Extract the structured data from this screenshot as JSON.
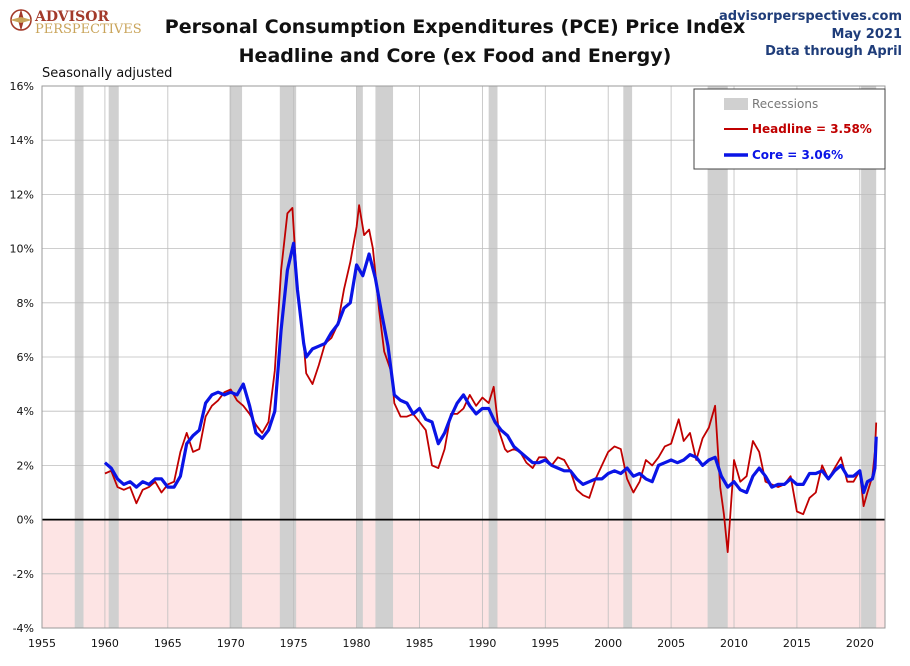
{
  "header": {
    "brand_top": "ADVISOR",
    "brand_bottom": "PERSPECTIVES",
    "title_line1": "Personal Consumption Expenditures (PCE) Price Index",
    "title_line2": "Headline and Core (ex Food and Energy)",
    "site": "advisorperspectives.com",
    "date": "May 2021",
    "data_through": "Data through April",
    "seasonal_note": "Seasonally adjusted"
  },
  "colors": {
    "headline": "#c00000",
    "core": "#0a14e6",
    "recession": "#d0d0d0",
    "negative_zone": "#fde4e4",
    "grid": "#bdbdbd"
  },
  "chart_data": {
    "type": "line",
    "title": "Personal Consumption Expenditures (PCE) Price Index Headline and Core (ex Food and Energy)",
    "xlim": [
      1955,
      2022
    ],
    "ylim": [
      -4,
      16
    ],
    "x_ticks": [
      1955,
      1960,
      1965,
      1970,
      1975,
      1980,
      1985,
      1990,
      1995,
      2000,
      2005,
      2010,
      2015,
      2020
    ],
    "y_ticks": [
      -4,
      -2,
      0,
      2,
      4,
      6,
      8,
      10,
      12,
      14,
      16
    ],
    "y_tick_suffix": "%",
    "grid": true,
    "legend": {
      "placement": "top-right",
      "recessions_label": "Recessions",
      "headline_label": "Headline = 3.58%",
      "core_label": "Core = 3.06%"
    },
    "recessions": [
      [
        1957.6,
        1958.3
      ],
      [
        1960.3,
        1961.1
      ],
      [
        1969.9,
        1970.9
      ],
      [
        1973.9,
        1975.2
      ],
      [
        1980.0,
        1980.5
      ],
      [
        1981.5,
        1982.9
      ],
      [
        1990.5,
        1991.2
      ],
      [
        2001.2,
        2001.9
      ],
      [
        2007.9,
        2009.5
      ],
      [
        2020.1,
        2021.3
      ]
    ],
    "series": [
      {
        "name": "Headline",
        "points": [
          [
            1960,
            1.7
          ],
          [
            1960.5,
            1.8
          ],
          [
            1961,
            1.2
          ],
          [
            1961.5,
            1.1
          ],
          [
            1962,
            1.2
          ],
          [
            1962.5,
            0.6
          ],
          [
            1963,
            1.1
          ],
          [
            1963.5,
            1.2
          ],
          [
            1964,
            1.4
          ],
          [
            1964.5,
            1.0
          ],
          [
            1965,
            1.3
          ],
          [
            1965.5,
            1.4
          ],
          [
            1966,
            2.5
          ],
          [
            1966.5,
            3.2
          ],
          [
            1967,
            2.5
          ],
          [
            1967.5,
            2.6
          ],
          [
            1968,
            3.8
          ],
          [
            1968.5,
            4.2
          ],
          [
            1969,
            4.4
          ],
          [
            1969.5,
            4.7
          ],
          [
            1970,
            4.8
          ],
          [
            1970.5,
            4.4
          ],
          [
            1971,
            4.2
          ],
          [
            1971.5,
            3.9
          ],
          [
            1972,
            3.5
          ],
          [
            1972.5,
            3.2
          ],
          [
            1973,
            3.6
          ],
          [
            1973.5,
            5.5
          ],
          [
            1974,
            9.2
          ],
          [
            1974.5,
            11.3
          ],
          [
            1974.9,
            11.5
          ],
          [
            1975.3,
            8.5
          ],
          [
            1975.8,
            6.5
          ],
          [
            1976,
            5.4
          ],
          [
            1976.5,
            5.0
          ],
          [
            1977,
            5.7
          ],
          [
            1977.5,
            6.5
          ],
          [
            1978,
            6.7
          ],
          [
            1978.5,
            7.2
          ],
          [
            1979,
            8.5
          ],
          [
            1979.5,
            9.5
          ],
          [
            1980,
            10.8
          ],
          [
            1980.2,
            11.6
          ],
          [
            1980.6,
            10.5
          ],
          [
            1981,
            10.7
          ],
          [
            1981.3,
            10.0
          ],
          [
            1981.8,
            7.7
          ],
          [
            1982.2,
            6.2
          ],
          [
            1982.8,
            5.4
          ],
          [
            1983,
            4.3
          ],
          [
            1983.5,
            3.8
          ],
          [
            1984,
            3.8
          ],
          [
            1984.5,
            3.9
          ],
          [
            1985,
            3.6
          ],
          [
            1985.5,
            3.3
          ],
          [
            1986,
            2.0
          ],
          [
            1986.5,
            1.9
          ],
          [
            1987,
            2.6
          ],
          [
            1987.5,
            3.9
          ],
          [
            1988,
            3.9
          ],
          [
            1988.5,
            4.1
          ],
          [
            1989,
            4.6
          ],
          [
            1989.5,
            4.2
          ],
          [
            1990,
            4.5
          ],
          [
            1990.5,
            4.3
          ],
          [
            1990.9,
            4.9
          ],
          [
            1991.3,
            3.3
          ],
          [
            1991.8,
            2.6
          ],
          [
            1992,
            2.5
          ],
          [
            1992.5,
            2.6
          ],
          [
            1993,
            2.5
          ],
          [
            1993.5,
            2.1
          ],
          [
            1994,
            1.9
          ],
          [
            1994.5,
            2.3
          ],
          [
            1995,
            2.3
          ],
          [
            1995.5,
            2.0
          ],
          [
            1996,
            2.3
          ],
          [
            1996.5,
            2.2
          ],
          [
            1997,
            1.8
          ],
          [
            1997.5,
            1.1
          ],
          [
            1998,
            0.9
          ],
          [
            1998.5,
            0.8
          ],
          [
            1999,
            1.5
          ],
          [
            1999.5,
            2.0
          ],
          [
            2000,
            2.5
          ],
          [
            2000.5,
            2.7
          ],
          [
            2001,
            2.6
          ],
          [
            2001.5,
            1.5
          ],
          [
            2002,
            1.0
          ],
          [
            2002.5,
            1.4
          ],
          [
            2003,
            2.2
          ],
          [
            2003.5,
            2.0
          ],
          [
            2004,
            2.3
          ],
          [
            2004.5,
            2.7
          ],
          [
            2005,
            2.8
          ],
          [
            2005.6,
            3.7
          ],
          [
            2006,
            2.9
          ],
          [
            2006.5,
            3.2
          ],
          [
            2007,
            2.2
          ],
          [
            2007.5,
            3.0
          ],
          [
            2008,
            3.4
          ],
          [
            2008.5,
            4.2
          ],
          [
            2008.9,
            1.2
          ],
          [
            2009.2,
            0.2
          ],
          [
            2009.5,
            -1.2
          ],
          [
            2009.9,
            1.5
          ],
          [
            2010,
            2.2
          ],
          [
            2010.5,
            1.4
          ],
          [
            2011,
            1.6
          ],
          [
            2011.5,
            2.9
          ],
          [
            2012,
            2.5
          ],
          [
            2012.5,
            1.4
          ],
          [
            2013,
            1.3
          ],
          [
            2013.5,
            1.2
          ],
          [
            2014,
            1.3
          ],
          [
            2014.5,
            1.6
          ],
          [
            2015,
            0.3
          ],
          [
            2015.5,
            0.2
          ],
          [
            2016,
            0.8
          ],
          [
            2016.5,
            1.0
          ],
          [
            2017,
            2.0
          ],
          [
            2017.5,
            1.5
          ],
          [
            2018,
            1.9
          ],
          [
            2018.5,
            2.3
          ],
          [
            2019,
            1.4
          ],
          [
            2019.5,
            1.4
          ],
          [
            2020,
            1.8
          ],
          [
            2020.3,
            0.5
          ],
          [
            2020.6,
            1.0
          ],
          [
            2021,
            1.6
          ],
          [
            2021.2,
            2.5
          ],
          [
            2021.3,
            3.58
          ]
        ]
      },
      {
        "name": "Core",
        "points": [
          [
            1960,
            2.1
          ],
          [
            1960.5,
            1.9
          ],
          [
            1961,
            1.5
          ],
          [
            1961.5,
            1.3
          ],
          [
            1962,
            1.4
          ],
          [
            1962.5,
            1.2
          ],
          [
            1963,
            1.4
          ],
          [
            1963.5,
            1.3
          ],
          [
            1964,
            1.5
          ],
          [
            1964.5,
            1.5
          ],
          [
            1965,
            1.2
          ],
          [
            1965.5,
            1.2
          ],
          [
            1966,
            1.6
          ],
          [
            1966.5,
            2.8
          ],
          [
            1967,
            3.1
          ],
          [
            1967.5,
            3.3
          ],
          [
            1968,
            4.3
          ],
          [
            1968.5,
            4.6
          ],
          [
            1969,
            4.7
          ],
          [
            1969.5,
            4.6
          ],
          [
            1970,
            4.7
          ],
          [
            1970.5,
            4.6
          ],
          [
            1971,
            5.0
          ],
          [
            1971.5,
            4.2
          ],
          [
            1972,
            3.2
          ],
          [
            1972.5,
            3.0
          ],
          [
            1973,
            3.3
          ],
          [
            1973.5,
            4.0
          ],
          [
            1974,
            7.0
          ],
          [
            1974.5,
            9.2
          ],
          [
            1975,
            10.2
          ],
          [
            1975.3,
            8.5
          ],
          [
            1975.8,
            6.5
          ],
          [
            1976,
            6.0
          ],
          [
            1976.5,
            6.3
          ],
          [
            1977,
            6.4
          ],
          [
            1977.5,
            6.5
          ],
          [
            1978,
            6.9
          ],
          [
            1978.5,
            7.2
          ],
          [
            1979,
            7.8
          ],
          [
            1979.5,
            8.0
          ],
          [
            1980,
            9.4
          ],
          [
            1980.5,
            9.0
          ],
          [
            1981,
            9.8
          ],
          [
            1981.5,
            8.9
          ],
          [
            1982,
            7.6
          ],
          [
            1982.5,
            6.4
          ],
          [
            1983,
            4.6
          ],
          [
            1983.5,
            4.4
          ],
          [
            1984,
            4.3
          ],
          [
            1984.5,
            3.9
          ],
          [
            1985,
            4.1
          ],
          [
            1985.5,
            3.7
          ],
          [
            1986,
            3.6
          ],
          [
            1986.5,
            2.8
          ],
          [
            1987,
            3.2
          ],
          [
            1987.5,
            3.8
          ],
          [
            1988,
            4.3
          ],
          [
            1988.5,
            4.6
          ],
          [
            1989,
            4.2
          ],
          [
            1989.5,
            3.9
          ],
          [
            1990,
            4.1
          ],
          [
            1990.5,
            4.1
          ],
          [
            1991,
            3.6
          ],
          [
            1991.5,
            3.3
          ],
          [
            1992,
            3.1
          ],
          [
            1992.5,
            2.7
          ],
          [
            1993,
            2.5
          ],
          [
            1993.5,
            2.3
          ],
          [
            1994,
            2.1
          ],
          [
            1994.5,
            2.1
          ],
          [
            1995,
            2.2
          ],
          [
            1995.5,
            2.0
          ],
          [
            1996,
            1.9
          ],
          [
            1996.5,
            1.8
          ],
          [
            1997,
            1.8
          ],
          [
            1997.5,
            1.5
          ],
          [
            1998,
            1.3
          ],
          [
            1998.5,
            1.4
          ],
          [
            1999,
            1.5
          ],
          [
            1999.5,
            1.5
          ],
          [
            2000,
            1.7
          ],
          [
            2000.5,
            1.8
          ],
          [
            2001,
            1.7
          ],
          [
            2001.5,
            1.9
          ],
          [
            2002,
            1.6
          ],
          [
            2002.5,
            1.7
          ],
          [
            2003,
            1.5
          ],
          [
            2003.5,
            1.4
          ],
          [
            2004,
            2.0
          ],
          [
            2004.5,
            2.1
          ],
          [
            2005,
            2.2
          ],
          [
            2005.5,
            2.1
          ],
          [
            2006,
            2.2
          ],
          [
            2006.5,
            2.4
          ],
          [
            2007,
            2.3
          ],
          [
            2007.5,
            2.0
          ],
          [
            2008,
            2.2
          ],
          [
            2008.5,
            2.3
          ],
          [
            2009,
            1.6
          ],
          [
            2009.5,
            1.2
          ],
          [
            2010,
            1.4
          ],
          [
            2010.5,
            1.1
          ],
          [
            2011,
            1.0
          ],
          [
            2011.5,
            1.6
          ],
          [
            2012,
            1.9
          ],
          [
            2012.5,
            1.6
          ],
          [
            2013,
            1.2
          ],
          [
            2013.5,
            1.3
          ],
          [
            2014,
            1.3
          ],
          [
            2014.5,
            1.5
          ],
          [
            2015,
            1.3
          ],
          [
            2015.5,
            1.3
          ],
          [
            2016,
            1.7
          ],
          [
            2016.5,
            1.7
          ],
          [
            2017,
            1.8
          ],
          [
            2017.5,
            1.5
          ],
          [
            2018,
            1.8
          ],
          [
            2018.5,
            2.0
          ],
          [
            2019,
            1.6
          ],
          [
            2019.5,
            1.6
          ],
          [
            2020,
            1.8
          ],
          [
            2020.3,
            1.0
          ],
          [
            2020.6,
            1.4
          ],
          [
            2021,
            1.5
          ],
          [
            2021.2,
            1.9
          ],
          [
            2021.3,
            3.06
          ]
        ]
      }
    ]
  }
}
